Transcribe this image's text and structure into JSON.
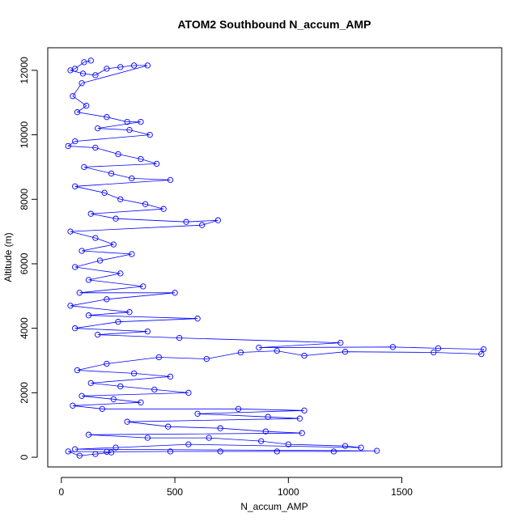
{
  "chart_data": {
    "type": "scatter",
    "title": "ATOM2 Southbound N_accum_AMP",
    "xlabel": "N_accum_AMP",
    "ylabel": "Altitude (m)",
    "xlim": [
      -60,
      1940
    ],
    "ylim": [
      -300,
      12700
    ],
    "x_ticks": [
      0,
      500,
      1000,
      1500
    ],
    "y_ticks": [
      0,
      2000,
      4000,
      6000,
      8000,
      10000,
      12000
    ],
    "grid": false,
    "legend": "none",
    "marker": "open-circle",
    "connected": true,
    "series": [
      {
        "color": "#0000ff",
        "points": [
          [
            130,
            12300
          ],
          [
            100,
            12250
          ],
          [
            60,
            12050
          ],
          [
            40,
            12000
          ],
          [
            95,
            11900
          ],
          [
            150,
            11850
          ],
          [
            200,
            12050
          ],
          [
            260,
            12100
          ],
          [
            320,
            12150
          ],
          [
            380,
            12150
          ],
          [
            90,
            11600
          ],
          [
            50,
            11200
          ],
          [
            110,
            10900
          ],
          [
            70,
            10700
          ],
          [
            200,
            10550
          ],
          [
            290,
            10400
          ],
          [
            350,
            10400
          ],
          [
            160,
            10200
          ],
          [
            300,
            10150
          ],
          [
            390,
            10000
          ],
          [
            60,
            9800
          ],
          [
            30,
            9650
          ],
          [
            150,
            9600
          ],
          [
            250,
            9400
          ],
          [
            350,
            9250
          ],
          [
            420,
            9100
          ],
          [
            100,
            9000
          ],
          [
            220,
            8800
          ],
          [
            310,
            8650
          ],
          [
            480,
            8600
          ],
          [
            60,
            8400
          ],
          [
            190,
            8200
          ],
          [
            260,
            8000
          ],
          [
            370,
            7850
          ],
          [
            450,
            7700
          ],
          [
            130,
            7550
          ],
          [
            240,
            7400
          ],
          [
            550,
            7300
          ],
          [
            690,
            7350
          ],
          [
            620,
            7200
          ],
          [
            40,
            7000
          ],
          [
            150,
            6800
          ],
          [
            230,
            6600
          ],
          [
            90,
            6400
          ],
          [
            310,
            6300
          ],
          [
            170,
            6100
          ],
          [
            60,
            5900
          ],
          [
            260,
            5700
          ],
          [
            120,
            5500
          ],
          [
            360,
            5300
          ],
          [
            80,
            5100
          ],
          [
            500,
            5100
          ],
          [
            200,
            4900
          ],
          [
            40,
            4700
          ],
          [
            300,
            4500
          ],
          [
            120,
            4400
          ],
          [
            600,
            4300
          ],
          [
            250,
            4200
          ],
          [
            60,
            4000
          ],
          [
            380,
            3900
          ],
          [
            160,
            3800
          ],
          [
            520,
            3700
          ],
          [
            1230,
            3550
          ],
          [
            870,
            3400
          ],
          [
            1460,
            3420
          ],
          [
            1660,
            3380
          ],
          [
            1860,
            3350
          ],
          [
            1850,
            3200
          ],
          [
            1640,
            3250
          ],
          [
            1250,
            3270
          ],
          [
            1070,
            3150
          ],
          [
            950,
            3300
          ],
          [
            790,
            3250
          ],
          [
            640,
            3050
          ],
          [
            430,
            3100
          ],
          [
            200,
            2900
          ],
          [
            70,
            2700
          ],
          [
            320,
            2600
          ],
          [
            480,
            2500
          ],
          [
            130,
            2300
          ],
          [
            260,
            2200
          ],
          [
            410,
            2100
          ],
          [
            560,
            2000
          ],
          [
            90,
            1900
          ],
          [
            230,
            1800
          ],
          [
            350,
            1700
          ],
          [
            50,
            1600
          ],
          [
            180,
            1500
          ],
          [
            780,
            1500
          ],
          [
            1070,
            1450
          ],
          [
            600,
            1350
          ],
          [
            910,
            1250
          ],
          [
            1050,
            1200
          ],
          [
            290,
            1100
          ],
          [
            470,
            950
          ],
          [
            700,
            900
          ],
          [
            900,
            800
          ],
          [
            1060,
            750
          ],
          [
            120,
            700
          ],
          [
            380,
            600
          ],
          [
            650,
            600
          ],
          [
            880,
            500
          ],
          [
            1000,
            400
          ],
          [
            1250,
            350
          ],
          [
            1320,
            300
          ],
          [
            560,
            400
          ],
          [
            240,
            300
          ],
          [
            60,
            250
          ],
          [
            1390,
            200
          ],
          [
            1200,
            180
          ],
          [
            950,
            180
          ],
          [
            700,
            180
          ],
          [
            480,
            180
          ],
          [
            200,
            170
          ],
          [
            30,
            180
          ],
          [
            80,
            50
          ],
          [
            150,
            100
          ],
          [
            220,
            150
          ]
        ]
      }
    ]
  }
}
